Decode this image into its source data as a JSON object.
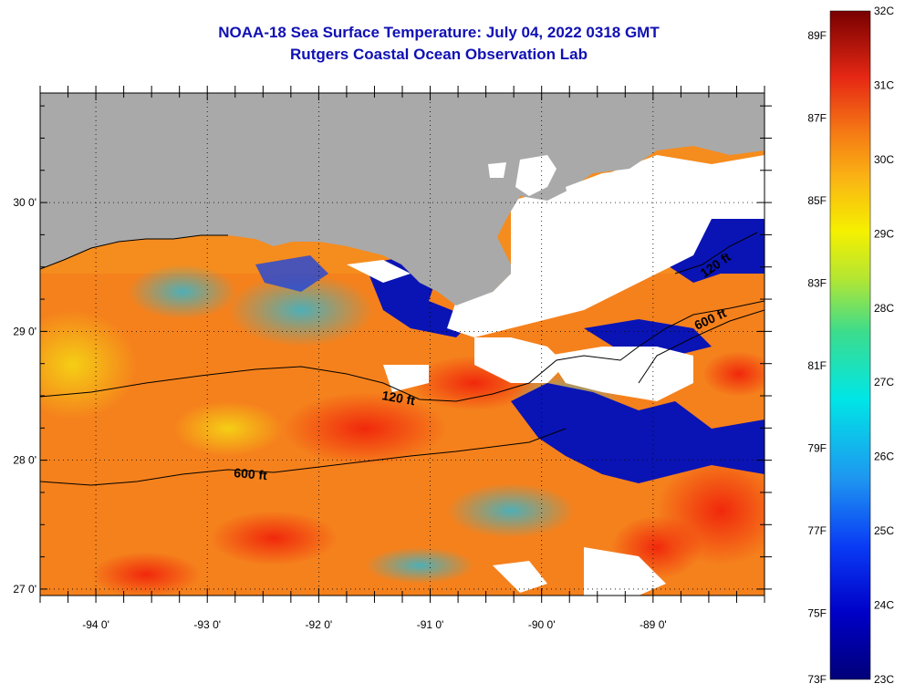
{
  "title": {
    "line1": "NOAA-18 Sea Surface Temperature:  July 04, 2022 0318 GMT",
    "line2": "Rutgers Coastal Ocean Observation Lab"
  },
  "colors": {
    "title": "#1010b4",
    "land": "#a9a9a9",
    "cloud": "#ffffff",
    "contour": "#000000"
  },
  "axes": {
    "x_ticks": [
      "-94 0'",
      "-93 0'",
      "-92 0'",
      "-91 0'",
      "-90 0'",
      "-89 0'"
    ],
    "y_ticks": [
      "30 0'",
      "29 0'",
      "28 0'",
      "27 0'"
    ]
  },
  "contours": {
    "shelf_120": "120 ft",
    "slope_600": "600 ft",
    "east_120": "120 ft",
    "east_600": "600 ft"
  },
  "colorbar": {
    "fahrenheit": [
      "89F",
      "87F",
      "85F",
      "83F",
      "81F",
      "79F",
      "77F",
      "75F",
      "73F"
    ],
    "celsius": [
      "32C",
      "31C",
      "30C",
      "29C",
      "28C",
      "27C",
      "26C",
      "25C",
      "24C",
      "23C"
    ]
  },
  "chart_data": {
    "type": "heatmap",
    "title": "NOAA-18 Sea Surface Temperature:  July 04, 2022 0318 GMT",
    "subtitle": "Rutgers Coastal Ocean Observation Lab",
    "xlabel": "",
    "ylabel": "",
    "x_range": [
      -94.5,
      -88.0
    ],
    "y_range": [
      26.95,
      30.85
    ],
    "x_tick_labels": [
      "-94 0'",
      "-93 0'",
      "-92 0'",
      "-91 0'",
      "-90 0'",
      "-89 0'"
    ],
    "y_tick_labels": [
      "30 0'",
      "29 0'",
      "28 0'",
      "27 0'"
    ],
    "colorscale": {
      "unit_left": "F",
      "unit_right": "C",
      "min_c": 23,
      "max_c": 32,
      "min_f": 73,
      "max_f": 89.6
    },
    "grid": true,
    "regions": {
      "land": "grey",
      "cloud": "white",
      "isobaths": [
        "120 ft",
        "600 ft"
      ]
    }
  }
}
